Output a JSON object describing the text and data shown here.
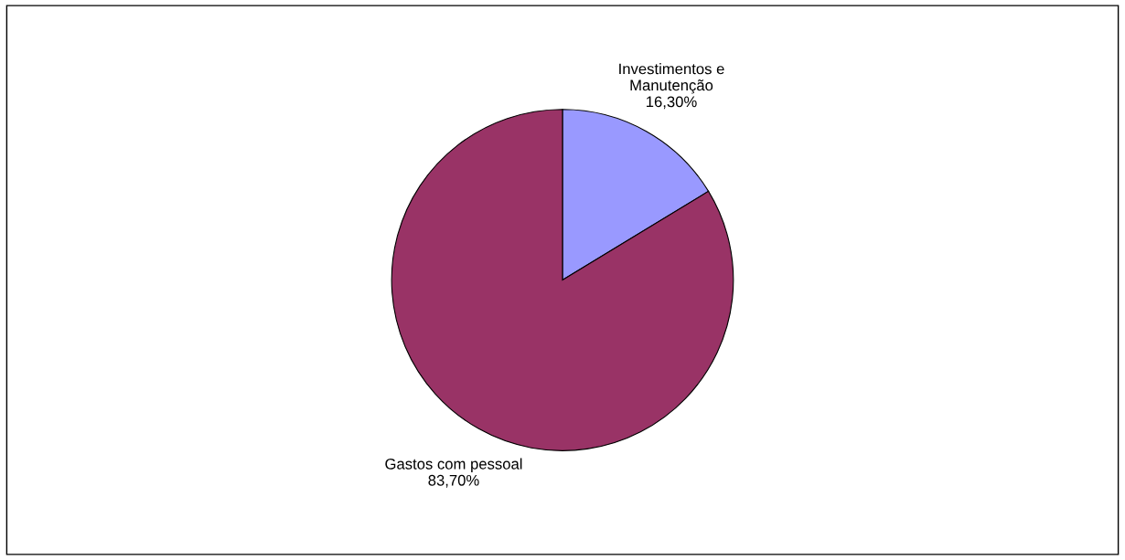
{
  "chart_data": {
    "type": "pie",
    "categories": [
      "Investimentos e\nManutenção",
      "Gastos com pessoal"
    ],
    "values": [
      16.3,
      83.7
    ],
    "colors": [
      "#9999ff",
      "#993366"
    ],
    "value_labels": [
      "16,30%",
      "83,70%"
    ],
    "legend": false
  }
}
